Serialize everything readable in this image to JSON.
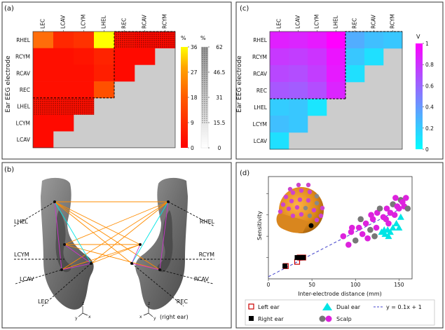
{
  "panels": {
    "a": "(a)",
    "b": "(b)",
    "c": "(c)",
    "d": "(d)"
  },
  "electrodes": {
    "top": [
      "LEC",
      "LCAV",
      "LCYM",
      "LHEL",
      "REC",
      "RCAV",
      "RCYM"
    ],
    "left": [
      "RHEL",
      "RCYM",
      "RCAV",
      "REC",
      "LHEL",
      "LCYM",
      "LCAV"
    ]
  },
  "ylabel_matrix": "Ear EEG electrode",
  "colorbar_a": {
    "unit": "%",
    "ticks": [
      "36",
      "27",
      "18",
      "9",
      "0"
    ]
  },
  "colorbar_a2": {
    "unit": "%",
    "ticks": [
      "62",
      "46.5",
      "31",
      "15.5",
      "0"
    ]
  },
  "colorbar_c": {
    "unit": "V",
    "ticks": [
      "1",
      "0.8",
      "0.6",
      "0.4",
      "0.2",
      "0"
    ]
  },
  "colors": {
    "heat_low": "#ff0000",
    "heat_mid": "#ff8c1a",
    "heat_high": "#ffff00",
    "cool_low": "#00ffff",
    "cool_high": "#ff00ff",
    "na": "#cccccc"
  },
  "matrix_a": [
    [
      22,
      8,
      10,
      36,
      3,
      2,
      2
    ],
    [
      3,
      3,
      4,
      7,
      2,
      2,
      null
    ],
    [
      3,
      3,
      3,
      6,
      2,
      null,
      null
    ],
    [
      3,
      3,
      3,
      16,
      null,
      null,
      null
    ],
    [
      3,
      3,
      3,
      null,
      null,
      null,
      null
    ],
    [
      2,
      2,
      null,
      null,
      null,
      null,
      null
    ],
    [
      2,
      null,
      null,
      null,
      null,
      null,
      null
    ]
  ],
  "matrix_c": [
    [
      0.88,
      0.86,
      0.9,
      1.0,
      0.32,
      0.25,
      0.22
    ],
    [
      0.78,
      0.76,
      0.8,
      0.92,
      0.22,
      0.12,
      null
    ],
    [
      0.72,
      0.7,
      0.76,
      0.9,
      0.12,
      null,
      null
    ],
    [
      0.66,
      0.64,
      0.7,
      0.86,
      null,
      null,
      null
    ],
    [
      0.2,
      0.22,
      0.1,
      null,
      null,
      null,
      null
    ],
    [
      0.25,
      0.22,
      null,
      null,
      null,
      null,
      null
    ],
    [
      0.12,
      null,
      null,
      null,
      null,
      null,
      null
    ]
  ],
  "ear_labels": {
    "left": [
      "LHEL",
      "LCYM",
      "LCAV",
      "LEC"
    ],
    "right": [
      "RHEL",
      "RCYM",
      "RCAV",
      "REC"
    ],
    "right_note": "(right ear)",
    "axes": [
      "z",
      "y",
      "x"
    ]
  },
  "chart_data": {
    "type": "scatter",
    "xlabel": "Inter-electrode distance (mm)",
    "ylabel": "Sensitivity",
    "xlim": [
      0,
      165
    ],
    "xticks": [
      "0",
      "50",
      "100",
      "150"
    ],
    "fit": {
      "slope": 0.1,
      "intercept": 1,
      "label": "y = 0.1x + 1"
    },
    "series": [
      {
        "name": "Left ear",
        "marker": "open-square",
        "color": "#cc0000",
        "points": [
          [
            20,
            6
          ],
          [
            33,
            8
          ],
          [
            36,
            10
          ],
          [
            40,
            10
          ]
        ]
      },
      {
        "name": "Right ear",
        "marker": "filled-square",
        "color": "#000000",
        "points": [
          [
            19,
            6
          ],
          [
            33,
            10
          ],
          [
            38,
            10
          ],
          [
            40,
            10
          ]
        ]
      },
      {
        "name": "Dual ear",
        "marker": "triangle",
        "color": "#00e5e5",
        "points": [
          [
            130,
            22
          ],
          [
            134,
            21
          ],
          [
            137,
            23
          ],
          [
            140,
            22
          ],
          [
            143,
            24
          ],
          [
            147,
            26
          ],
          [
            150,
            24
          ],
          [
            152,
            29
          ],
          [
            138,
            20
          ],
          [
            133,
            23
          ]
        ]
      },
      {
        "name": "Scalp",
        "marker": "circle",
        "color": "#dd22dd",
        "points": [
          [
            86,
            20
          ],
          [
            92,
            16
          ],
          [
            95,
            22
          ],
          [
            100,
            18
          ],
          [
            104,
            24
          ],
          [
            108,
            21
          ],
          [
            112,
            26
          ],
          [
            117,
            23
          ],
          [
            120,
            28
          ],
          [
            124,
            24
          ],
          [
            125,
            31
          ],
          [
            128,
            33
          ],
          [
            132,
            29
          ],
          [
            136,
            33
          ],
          [
            140,
            31
          ],
          [
            143,
            35
          ],
          [
            145,
            30
          ],
          [
            148,
            34
          ],
          [
            150,
            33
          ],
          [
            152,
            37
          ],
          [
            154,
            36
          ],
          [
            156,
            34
          ],
          [
            158,
            38
          ],
          [
            160,
            33
          ],
          [
            146,
            38
          ],
          [
            135,
            28
          ],
          [
            118,
            30
          ],
          [
            106,
            28
          ],
          [
            96,
            24
          ],
          [
            114,
            19
          ],
          [
            138,
            26
          ],
          [
            122,
            20
          ]
        ]
      }
    ]
  },
  "legend": [
    "Left ear",
    "Dual ear",
    "y = 0.1x + 1",
    "Right ear",
    "Scalp"
  ]
}
